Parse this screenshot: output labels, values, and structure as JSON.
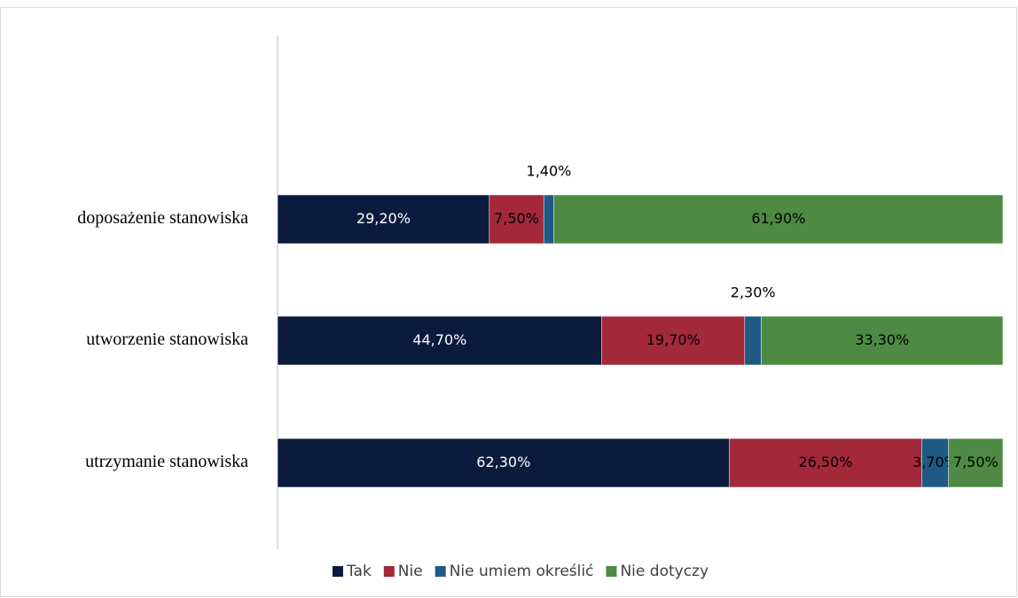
{
  "chart_data": {
    "type": "bar",
    "orientation": "horizontal",
    "stacked": true,
    "categories": [
      "doposażenie stanowiska",
      "utworzenie stanowiska",
      "utrzymanie stanowiska"
    ],
    "series": [
      {
        "name": "Tak",
        "color": "#0b1b3d",
        "values": [
          29.2,
          44.7,
          62.3
        ],
        "value_labels": [
          "29,20%",
          "44,70%",
          "62,30%"
        ]
      },
      {
        "name": "Nie",
        "color": "#a2283a",
        "values": [
          7.5,
          19.7,
          26.5
        ],
        "value_labels": [
          "7,50%",
          "19,70%",
          "26,50%"
        ]
      },
      {
        "name": "Nie umiem określić",
        "color": "#1f5a85",
        "values": [
          1.4,
          2.3,
          3.7
        ],
        "value_labels": [
          "1,40%",
          "2,30%",
          "3,70%"
        ]
      },
      {
        "name": "Nie dotyczy",
        "color": "#4e8a43",
        "values": [
          61.9,
          33.3,
          7.5
        ],
        "value_labels": [
          "61,90%",
          "33,30%",
          "7,50%"
        ]
      }
    ],
    "legend": "bottom"
  }
}
